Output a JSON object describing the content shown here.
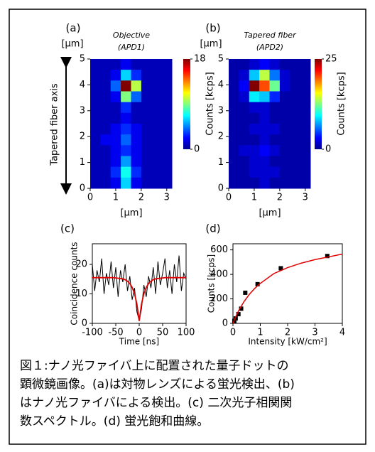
{
  "chart_data": [
    {
      "type": "heatmap",
      "panel": "(a)",
      "title": "Objective",
      "subtitle": "(APD1)",
      "xlabel": "[µm]",
      "ylabel": "[µm]",
      "y_axis_note": "Tapered fiber axis",
      "xlim": [
        0,
        3.2
      ],
      "ylim": [
        0,
        5
      ],
      "xticks": [
        0,
        1,
        2,
        3
      ],
      "yticks": [
        0,
        1,
        2,
        3,
        4,
        5
      ],
      "zlim": [
        0,
        18
      ],
      "zticks": [
        0,
        18
      ],
      "zlabel": "Counts [kcps]",
      "z": [
        [
          1,
          1,
          1,
          2,
          1,
          1,
          1,
          1
        ],
        [
          1,
          1,
          2,
          6,
          3,
          1,
          1,
          1
        ],
        [
          1,
          1,
          4,
          18,
          10,
          1,
          1,
          1
        ],
        [
          1,
          1,
          2,
          9,
          4,
          1,
          1,
          1
        ],
        [
          1,
          1,
          1,
          3,
          1,
          1,
          1,
          1
        ],
        [
          1,
          1,
          1,
          2,
          1,
          1,
          1,
          1
        ],
        [
          1,
          1,
          2,
          3,
          2,
          1,
          1,
          1
        ],
        [
          1,
          2,
          2,
          4,
          2,
          1,
          1,
          1
        ],
        [
          1,
          1,
          2,
          3,
          2,
          1,
          1,
          1
        ],
        [
          1,
          1,
          2,
          5,
          2,
          1,
          1,
          1
        ],
        [
          1,
          1,
          3,
          7,
          3,
          1,
          1,
          1
        ],
        [
          1,
          1,
          2,
          6,
          2,
          1,
          1,
          1
        ]
      ]
    },
    {
      "type": "heatmap",
      "panel": "(b)",
      "title": "Tapered fiber",
      "subtitle": "(APD2)",
      "xlabel": "[µm]",
      "ylabel": "[µm]",
      "xlim": [
        0,
        3.2
      ],
      "ylim": [
        0,
        5
      ],
      "xticks": [
        0,
        1,
        2,
        3
      ],
      "yticks": [
        0,
        1,
        2,
        3,
        4,
        5
      ],
      "zlim": [
        0,
        25
      ],
      "zticks": [
        0,
        25
      ],
      "zlabel": "Counts [kcps]",
      "z": [
        [
          1,
          1,
          2,
          3,
          2,
          1,
          1,
          1
        ],
        [
          1,
          2,
          8,
          14,
          6,
          2,
          1,
          1
        ],
        [
          1,
          3,
          25,
          20,
          12,
          2,
          1,
          1
        ],
        [
          1,
          2,
          9,
          8,
          4,
          1,
          1,
          1
        ],
        [
          1,
          1,
          2,
          2,
          1,
          1,
          1,
          1
        ],
        [
          1,
          1,
          1,
          2,
          1,
          1,
          1,
          1
        ],
        [
          1,
          1,
          2,
          2,
          2,
          1,
          1,
          1
        ],
        [
          1,
          1,
          1,
          2,
          1,
          1,
          1,
          1
        ],
        [
          1,
          2,
          2,
          3,
          2,
          1,
          1,
          1
        ],
        [
          1,
          1,
          2,
          2,
          1,
          1,
          1,
          1
        ],
        [
          1,
          1,
          2,
          2,
          2,
          1,
          1,
          1
        ],
        [
          1,
          1,
          1,
          2,
          1,
          1,
          1,
          1
        ]
      ]
    },
    {
      "type": "line",
      "panel": "(c)",
      "xlabel": "Time [ns]",
      "ylabel": "Coincidence counts",
      "xlim": [
        -100,
        100
      ],
      "ylim": [
        0,
        27
      ],
      "xticks": [
        -100,
        -50,
        0,
        50,
        100
      ],
      "yticks": [
        0,
        10,
        20
      ],
      "x": [
        -100,
        -95,
        -90,
        -85,
        -80,
        -75,
        -70,
        -65,
        -60,
        -55,
        -50,
        -45,
        -40,
        -35,
        -30,
        -25,
        -20,
        -15,
        -10,
        -5,
        0,
        5,
        10,
        15,
        20,
        25,
        30,
        35,
        40,
        45,
        50,
        55,
        60,
        65,
        70,
        75,
        80,
        85,
        90,
        95,
        100
      ],
      "series": [
        {
          "color": "#000000",
          "values": [
            20,
            11,
            18,
            14,
            22,
            10,
            17,
            13,
            21,
            12,
            19,
            9,
            18,
            14,
            20,
            11,
            16,
            8,
            12,
            4,
            1,
            5,
            13,
            9,
            16,
            12,
            19,
            10,
            21,
            13,
            17,
            22,
            12,
            18,
            10,
            20,
            14,
            23,
            11,
            17,
            15
          ]
        },
        {
          "color": "#e00000",
          "values": [
            15.5,
            15.5,
            15.5,
            15.5,
            15.5,
            15.5,
            15.5,
            15.5,
            15.5,
            15.5,
            15.4,
            15.3,
            15.2,
            15.1,
            14.8,
            14.3,
            13.5,
            12.2,
            10.1,
            6.6,
            0.8,
            6.6,
            10.1,
            12.2,
            13.5,
            14.3,
            14.8,
            15.1,
            15.2,
            15.3,
            15.4,
            15.5,
            15.5,
            15.5,
            15.5,
            15.5,
            15.5,
            15.5,
            15.5,
            15.5,
            15.5
          ]
        }
      ]
    },
    {
      "type": "scatter",
      "panel": "(d)",
      "xlabel": "Intensity [kW/cm²]",
      "ylabel": "Counts [kcps]",
      "xlim": [
        0,
        4
      ],
      "ylim": [
        0,
        650
      ],
      "xticks": [
        0,
        1,
        2,
        3,
        4
      ],
      "yticks": [
        0,
        200,
        400,
        600
      ],
      "series": [
        {
          "mode": "markers",
          "color": "#000000",
          "x": [
            0.05,
            0.1,
            0.2,
            0.3,
            0.45,
            0.9,
            1.75,
            3.45
          ],
          "values": [
            20,
            40,
            75,
            120,
            250,
            320,
            450,
            550
          ]
        },
        {
          "mode": "line",
          "color": "#e00000",
          "x": [
            0,
            0.1,
            0.2,
            0.4,
            0.6,
            0.8,
            1,
            1.5,
            2,
            2.5,
            3,
            3.5,
            4
          ],
          "values": [
            0,
            53,
            100,
            176,
            237,
            286,
            326,
            407,
            455,
            492,
            521,
            543,
            566
          ]
        }
      ]
    }
  ],
  "caption": [
    "図１:ナノ光ファイバ上に配置された量子ドットの",
    "顕微鏡画像。(a)は対物レンズによる蛍光検出、(b)",
    "はナノ光ファイバによる検出。(c) 二次光子相関関",
    "数スペクトル。(d) 蛍光飽和曲線。"
  ]
}
